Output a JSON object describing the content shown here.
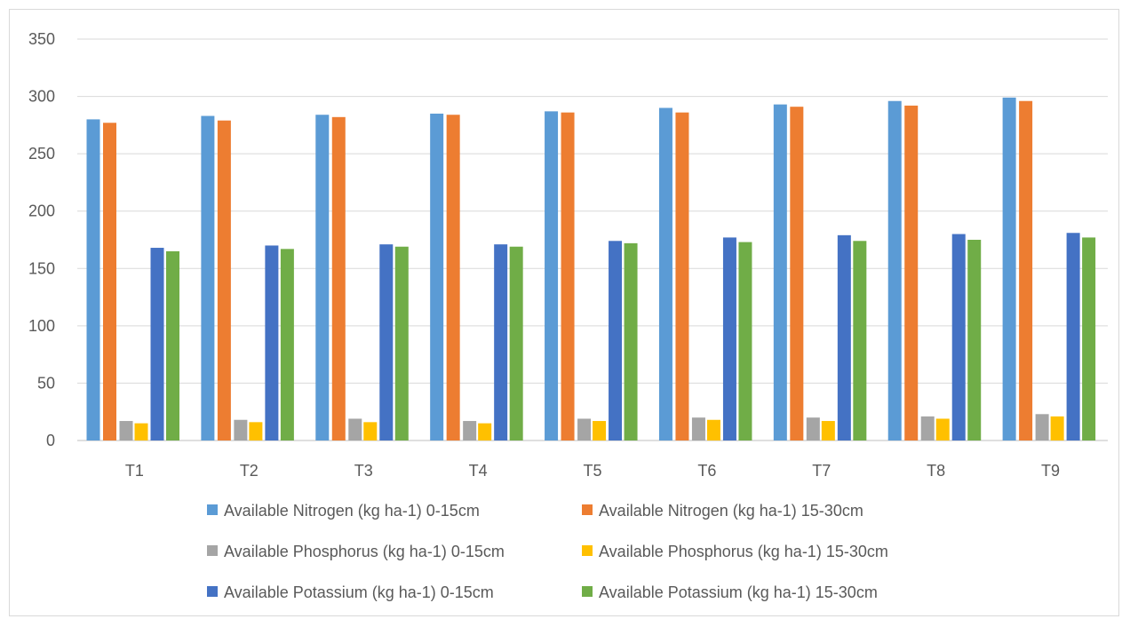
{
  "chart_data": {
    "type": "bar",
    "title": "",
    "xlabel": "",
    "ylabel": "",
    "ylim": [
      0,
      350
    ],
    "yticks": [
      0,
      50,
      100,
      150,
      200,
      250,
      300,
      350
    ],
    "grid": true,
    "legend_position": "bottom",
    "categories": [
      "T1",
      "T2",
      "T3",
      "T4",
      "T5",
      "T6",
      "T7",
      "T8",
      "T9"
    ],
    "series": [
      {
        "name": "Available Nitrogen (kg ha-1) 0-15cm",
        "color": "#5B9BD5",
        "values": [
          280,
          283,
          284,
          285,
          287,
          290,
          293,
          296,
          299
        ]
      },
      {
        "name": "Available Nitrogen (kg ha-1) 15-30cm",
        "color": "#ED7D31",
        "values": [
          277,
          279,
          282,
          284,
          286,
          286,
          291,
          292,
          296
        ]
      },
      {
        "name": "Available Phosphorus (kg ha-1) 0-15cm",
        "color": "#A5A5A5",
        "values": [
          17,
          18,
          19,
          17,
          19,
          20,
          20,
          21,
          23
        ]
      },
      {
        "name": "Available Phosphorus (kg ha-1) 15-30cm",
        "color": "#FFC000",
        "values": [
          15,
          16,
          16,
          15,
          17,
          18,
          17,
          19,
          21
        ]
      },
      {
        "name": "Available Potassium (kg ha-1) 0-15cm",
        "color": "#4472C4",
        "values": [
          168,
          170,
          171,
          171,
          174,
          177,
          179,
          180,
          181
        ]
      },
      {
        "name": "Available Potassium (kg ha-1) 15-30cm",
        "color": "#70AD47",
        "values": [
          165,
          167,
          169,
          169,
          172,
          173,
          174,
          175,
          177
        ]
      }
    ]
  }
}
